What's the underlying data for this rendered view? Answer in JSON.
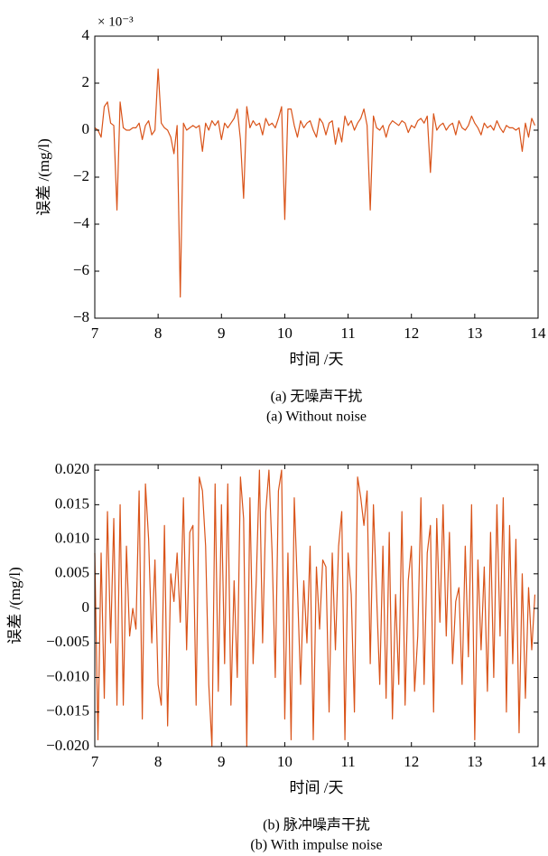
{
  "chart_data": [
    {
      "type": "line",
      "y_multiplier": "× 10⁻³",
      "ylabel": "误差 /(mg/l)",
      "xlabel": "时间 /天",
      "caption": "(a) 无噪声干扰",
      "caption_en": "(a) Without noise",
      "color": "#d95319",
      "xlim": [
        7,
        14
      ],
      "xticks": [
        7,
        8,
        9,
        10,
        11,
        12,
        13,
        14
      ],
      "ylim": [
        -8,
        4
      ],
      "yticks": [
        {
          "value": -8,
          "label": "−8"
        },
        {
          "value": -6,
          "label": "−6"
        },
        {
          "value": -4,
          "label": "−4"
        },
        {
          "value": -2,
          "label": "−2"
        },
        0,
        2,
        4
      ],
      "grid": false,
      "x": [
        7,
        7.05,
        7.1,
        7.15,
        7.2,
        7.25,
        7.3,
        7.35,
        7.4,
        7.45,
        7.5,
        7.55,
        7.6,
        7.65,
        7.7,
        7.75,
        7.8,
        7.85,
        7.9,
        7.95,
        8,
        8.05,
        8.1,
        8.15,
        8.2,
        8.25,
        8.3,
        8.35,
        8.4,
        8.45,
        8.5,
        8.55,
        8.6,
        8.65,
        8.7,
        8.75,
        8.8,
        8.85,
        8.9,
        8.95,
        9,
        9.05,
        9.1,
        9.15,
        9.2,
        9.25,
        9.3,
        9.35,
        9.4,
        9.45,
        9.5,
        9.55,
        9.6,
        9.65,
        9.7,
        9.75,
        9.8,
        9.85,
        9.9,
        9.95,
        10,
        10.05,
        10.1,
        10.15,
        10.2,
        10.25,
        10.3,
        10.35,
        10.4,
        10.45,
        10.5,
        10.55,
        10.6,
        10.65,
        10.7,
        10.75,
        10.8,
        10.85,
        10.9,
        10.95,
        11,
        11.05,
        11.1,
        11.15,
        11.2,
        11.25,
        11.3,
        11.35,
        11.4,
        11.45,
        11.5,
        11.55,
        11.6,
        11.65,
        11.7,
        11.75,
        11.8,
        11.85,
        11.9,
        11.95,
        12,
        12.05,
        12.1,
        12.15,
        12.2,
        12.25,
        12.3,
        12.35,
        12.4,
        12.45,
        12.5,
        12.55,
        12.6,
        12.65,
        12.7,
        12.75,
        12.8,
        12.85,
        12.9,
        12.95,
        13,
        13.05,
        13.1,
        13.15,
        13.2,
        13.25,
        13.3,
        13.35,
        13.4,
        13.45,
        13.5,
        13.55,
        13.6,
        13.65,
        13.7,
        13.75,
        13.8,
        13.85,
        13.9,
        13.95
      ],
      "values": [
        0.1,
        0,
        -0.3,
        1.0,
        1.2,
        0.3,
        0.2,
        -3.4,
        1.2,
        0.1,
        0,
        0,
        0.1,
        0.1,
        0.3,
        -0.4,
        0.2,
        0.4,
        -0.2,
        0,
        2.6,
        0.3,
        0.1,
        0,
        -0.3,
        -1.0,
        0.2,
        -7.1,
        0.3,
        0,
        0.1,
        0.2,
        0.1,
        0.2,
        -0.9,
        0.3,
        0,
        0.4,
        0.2,
        0.4,
        -0.4,
        0.3,
        0.1,
        0.3,
        0.5,
        0.9,
        -0.4,
        -2.9,
        1.0,
        0.1,
        0.4,
        0.2,
        0.3,
        -0.2,
        0.5,
        0.2,
        0.3,
        0.1,
        0.5,
        1.0,
        -3.8,
        0.9,
        0.9,
        0.2,
        -0.3,
        0.4,
        0.1,
        0.3,
        0.4,
        0,
        -0.3,
        0.5,
        0.3,
        -0.2,
        0.3,
        0.4,
        -0.6,
        0.1,
        -0.5,
        0.6,
        0.2,
        0.4,
        0,
        0.3,
        0.5,
        0.9,
        0.2,
        -3.4,
        0.6,
        0.1,
        0,
        0.2,
        -0.3,
        0.2,
        0.4,
        0.3,
        0.2,
        0.4,
        0.3,
        -0.1,
        0.2,
        0.1,
        0.4,
        0.5,
        0.3,
        0.6,
        -1.8,
        0.7,
        0,
        0.2,
        0.3,
        0,
        0.2,
        0.3,
        -0.2,
        0.4,
        0.1,
        0,
        0.2,
        0.6,
        0.3,
        0.1,
        -0.2,
        0.3,
        0.1,
        0.2,
        0,
        0.4,
        0.1,
        -0.1,
        0.2,
        0.1,
        0.1,
        0,
        0.1,
        -0.9,
        0.3,
        -0.3,
        0.5,
        0.2
      ]
    },
    {
      "type": "line",
      "ylabel": "误差 /(mg/l)",
      "xlabel": "时间 /天",
      "caption": "(b) 脉冲噪声干扰",
      "caption_en": "(b) With impulse noise",
      "color": "#d95319",
      "xlim": [
        7,
        14
      ],
      "xticks": [
        7,
        8,
        9,
        10,
        11,
        12,
        13,
        14
      ],
      "ylim": [
        -0.02,
        0.0208
      ],
      "yticks": [
        {
          "value": -0.02,
          "label": "−0.020"
        },
        {
          "value": -0.015,
          "label": "−0.015"
        },
        {
          "value": -0.01,
          "label": "−0.010"
        },
        {
          "value": -0.005,
          "label": "−0.005"
        },
        0,
        0.005,
        {
          "value": 0.01,
          "label": "0.010"
        },
        0.015,
        {
          "value": 0.02,
          "label": "0.020"
        }
      ],
      "grid": false,
      "x": [
        7,
        7.05,
        7.1,
        7.15,
        7.2,
        7.25,
        7.3,
        7.35,
        7.4,
        7.45,
        7.5,
        7.55,
        7.6,
        7.65,
        7.7,
        7.75,
        7.8,
        7.85,
        7.9,
        7.95,
        8,
        8.05,
        8.1,
        8.15,
        8.2,
        8.25,
        8.3,
        8.35,
        8.4,
        8.45,
        8.5,
        8.55,
        8.6,
        8.65,
        8.7,
        8.75,
        8.8,
        8.85,
        8.9,
        8.95,
        9,
        9.05,
        9.1,
        9.15,
        9.2,
        9.25,
        9.3,
        9.35,
        9.4,
        9.45,
        9.5,
        9.55,
        9.6,
        9.65,
        9.7,
        9.75,
        9.8,
        9.85,
        9.9,
        9.95,
        10,
        10.05,
        10.1,
        10.15,
        10.2,
        10.25,
        10.3,
        10.35,
        10.4,
        10.45,
        10.5,
        10.55,
        10.6,
        10.65,
        10.7,
        10.75,
        10.8,
        10.85,
        10.9,
        10.95,
        11,
        11.05,
        11.1,
        11.15,
        11.2,
        11.25,
        11.3,
        11.35,
        11.4,
        11.45,
        11.5,
        11.55,
        11.6,
        11.65,
        11.7,
        11.75,
        11.8,
        11.85,
        11.9,
        11.95,
        12,
        12.05,
        12.1,
        12.15,
        12.2,
        12.25,
        12.3,
        12.35,
        12.4,
        12.45,
        12.5,
        12.55,
        12.6,
        12.65,
        12.7,
        12.75,
        12.8,
        12.85,
        12.9,
        12.95,
        13,
        13.05,
        13.1,
        13.15,
        13.2,
        13.25,
        13.3,
        13.35,
        13.4,
        13.45,
        13.5,
        13.55,
        13.6,
        13.65,
        13.7,
        13.75,
        13.8,
        13.85,
        13.9,
        13.95
      ],
      "values": [
        0.008,
        -0.019,
        0.008,
        -0.013,
        0.014,
        -0.005,
        0.013,
        -0.014,
        0.015,
        -0.014,
        0.009,
        -0.004,
        0,
        -0.003,
        0.017,
        -0.016,
        0.018,
        0.01,
        -0.005,
        0.007,
        -0.011,
        -0.014,
        0.012,
        -0.017,
        0.005,
        0.001,
        0.008,
        -0.002,
        0.016,
        -0.006,
        0.011,
        0.012,
        -0.014,
        0.019,
        0.017,
        0.009,
        -0.011,
        -0.02,
        0.018,
        -0.012,
        0.015,
        -0.008,
        0.018,
        -0.014,
        0.004,
        -0.01,
        0.019,
        0.013,
        -0.02,
        0.016,
        -0.008,
        0.004,
        0.02,
        -0.005,
        0.014,
        0.02,
        0.008,
        -0.01,
        0.017,
        0.02,
        -0.016,
        0.008,
        -0.019,
        0.016,
        0.003,
        -0.011,
        0.004,
        -0.005,
        0.009,
        -0.019,
        0.006,
        -0.003,
        0.007,
        0.006,
        -0.015,
        0.008,
        -0.006,
        0.009,
        0.014,
        -0.019,
        0.008,
        0.002,
        -0.015,
        0.019,
        0.016,
        0.012,
        0.017,
        -0.008,
        0.015,
        0.002,
        -0.011,
        0.009,
        -0.013,
        0.011,
        -0.016,
        0.002,
        -0.011,
        0.014,
        -0.014,
        0.004,
        0.009,
        -0.012,
        -0.004,
        0.016,
        -0.011,
        0.008,
        0.012,
        -0.015,
        0.013,
        -0.002,
        0.015,
        -0.004,
        0.011,
        -0.008,
        0.001,
        0.003,
        -0.011,
        0.009,
        -0.007,
        0.015,
        -0.019,
        0.007,
        -0.006,
        0.006,
        -0.012,
        0.011,
        -0.01,
        0.015,
        -0.004,
        0.016,
        -0.015,
        0.012,
        -0.008,
        0.01,
        -0.018,
        0.005,
        -0.013,
        0.003,
        -0.006,
        0.002
      ]
    }
  ]
}
